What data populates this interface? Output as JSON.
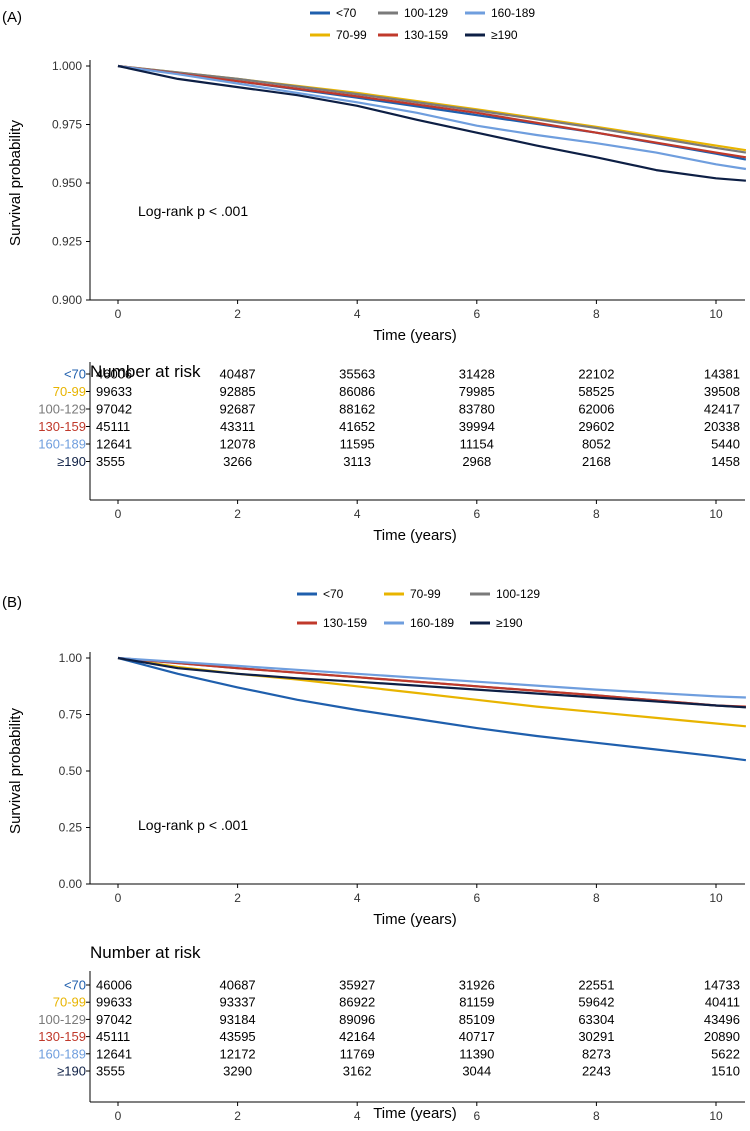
{
  "chart_data": [
    {
      "type": "line",
      "panel_label": "(A)",
      "ylabel": "Survival probability",
      "xlabel": "Time (years)",
      "xlim": [
        0,
        10.5
      ],
      "ylim": [
        0.9,
        1.0
      ],
      "x_ticks": [
        0,
        2,
        4,
        6,
        8,
        10
      ],
      "y_ticks": [
        0.9,
        0.925,
        0.95,
        0.975,
        1.0
      ],
      "y_tick_labels": [
        "0.900",
        "0.925",
        "0.950",
        "0.975",
        "1.000"
      ],
      "annotation": "Log-rank p < .001",
      "legend": [
        [
          "<70",
          "100-129",
          "160-189"
        ],
        [
          "70-99",
          "130-159",
          "≥190"
        ]
      ],
      "series": [
        {
          "name": "<70",
          "color": "#1f5fad",
          "x": [
            0,
            2,
            4,
            6,
            8,
            10,
            10.5
          ],
          "values": [
            1.0,
            0.9935,
            0.9865,
            0.979,
            0.9715,
            0.9625,
            0.96
          ]
        },
        {
          "name": "70-99",
          "color": "#e8b400",
          "x": [
            0,
            2,
            4,
            6,
            8,
            10,
            10.5
          ],
          "values": [
            1.0,
            0.9945,
            0.9885,
            0.9815,
            0.974,
            0.966,
            0.964
          ]
        },
        {
          "name": "100-129",
          "color": "#7a7a7a",
          "x": [
            0,
            2,
            4,
            6,
            8,
            10,
            10.5
          ],
          "values": [
            1.0,
            0.9945,
            0.988,
            0.981,
            0.9735,
            0.965,
            0.963
          ]
        },
        {
          "name": "130-159",
          "color": "#c0392b",
          "x": [
            0,
            2,
            4,
            6,
            8,
            10,
            10.5
          ],
          "values": [
            1.0,
            0.9935,
            0.987,
            0.98,
            0.9715,
            0.963,
            0.961
          ]
        },
        {
          "name": "160-189",
          "color": "#6f9ede",
          "x": [
            0,
            1,
            2,
            3,
            4,
            5,
            6,
            7,
            8,
            9,
            10,
            10.5
          ],
          "values": [
            1.0,
            0.9965,
            0.9925,
            0.9885,
            0.9845,
            0.98,
            0.9745,
            0.9705,
            0.967,
            0.963,
            0.958,
            0.956
          ]
        },
        {
          "name": "≥190",
          "color": "#0d1f45",
          "x": [
            0,
            1,
            2,
            3,
            4,
            5,
            6,
            7,
            8,
            9,
            10,
            10.5
          ],
          "values": [
            1.0,
            0.9945,
            0.991,
            0.9875,
            0.983,
            0.977,
            0.9715,
            0.966,
            0.961,
            0.9555,
            0.952,
            0.951
          ]
        }
      ]
    },
    {
      "type": "line",
      "panel_label": "(B)",
      "ylabel": "Survival probability",
      "xlabel": "Time (years)",
      "xlim": [
        0,
        10.5
      ],
      "ylim": [
        0.0,
        1.0
      ],
      "x_ticks": [
        0,
        2,
        4,
        6,
        8,
        10
      ],
      "y_ticks": [
        0.0,
        0.25,
        0.5,
        0.75,
        1.0
      ],
      "y_tick_labels": [
        "0.00",
        "0.25",
        "0.50",
        "0.75",
        "1.00"
      ],
      "annotation": "Log-rank p < .001",
      "legend": [
        [
          "<70",
          "70-99",
          "100-129"
        ],
        [
          "130-159",
          "160-189",
          "≥190"
        ]
      ],
      "series": [
        {
          "name": "<70",
          "color": "#1f5fad",
          "x": [
            0,
            1,
            2,
            3,
            4,
            5,
            6,
            7,
            8,
            9,
            10,
            10.5
          ],
          "values": [
            1.0,
            0.93,
            0.87,
            0.815,
            0.77,
            0.73,
            0.69,
            0.655,
            0.625,
            0.595,
            0.565,
            0.548
          ]
        },
        {
          "name": "70-99",
          "color": "#e8b400",
          "x": [
            0,
            1,
            2,
            3,
            4,
            5,
            6,
            7,
            8,
            9,
            10,
            10.5
          ],
          "values": [
            1.0,
            0.96,
            0.93,
            0.905,
            0.875,
            0.845,
            0.815,
            0.785,
            0.76,
            0.735,
            0.71,
            0.698
          ]
        },
        {
          "name": "100-129",
          "color": "#7a7a7a",
          "x": [
            0,
            2,
            4,
            6,
            8,
            10,
            10.5
          ],
          "values": [
            1.0,
            0.955,
            0.915,
            0.875,
            0.835,
            0.79,
            0.782
          ]
        },
        {
          "name": "130-159",
          "color": "#c0392b",
          "x": [
            0,
            2,
            4,
            6,
            8,
            10,
            10.5
          ],
          "values": [
            1.0,
            0.955,
            0.915,
            0.875,
            0.835,
            0.79,
            0.785
          ]
        },
        {
          "name": "160-189",
          "color": "#6f9ede",
          "x": [
            0,
            2,
            4,
            6,
            8,
            10,
            10.5
          ],
          "values": [
            1.0,
            0.965,
            0.93,
            0.895,
            0.86,
            0.83,
            0.825
          ]
        },
        {
          "name": "≥190",
          "color": "#0d1f45",
          "x": [
            0,
            1,
            2,
            3,
            4,
            6,
            8,
            10,
            10.5
          ],
          "values": [
            1.0,
            0.955,
            0.93,
            0.91,
            0.895,
            0.86,
            0.825,
            0.79,
            0.782
          ]
        }
      ]
    }
  ],
  "risk_tables": [
    {
      "title": "Number at risk",
      "xlabel": "Time (years)",
      "x_ticks": [
        0,
        2,
        4,
        6,
        8,
        10
      ],
      "rows": [
        {
          "label": "<70",
          "color": "#1f5fad",
          "values": [
            "46006",
            "40487",
            "35563",
            "31428",
            "22102",
            "14381"
          ]
        },
        {
          "label": "70-99",
          "color": "#e8b400",
          "values": [
            "99633",
            "92885",
            "86086",
            "79985",
            "58525",
            "39508"
          ]
        },
        {
          "label": "100-129",
          "color": "#7a7a7a",
          "values": [
            "97042",
            "92687",
            "88162",
            "83780",
            "62006",
            "42417"
          ]
        },
        {
          "label": "130-159",
          "color": "#c0392b",
          "values": [
            "45111",
            "43311",
            "41652",
            "39994",
            "29602",
            "20338"
          ]
        },
        {
          "label": "160-189",
          "color": "#6f9ede",
          "values": [
            "12641",
            "12078",
            "11595",
            "11154",
            "8052",
            "5440"
          ]
        },
        {
          "label": "≥190",
          "color": "#0d1f45",
          "values": [
            "3555",
            "3266",
            "3113",
            "2968",
            "2168",
            "1458"
          ]
        }
      ]
    },
    {
      "title": "Number at risk",
      "xlabel": "Time (years)",
      "x_ticks": [
        0,
        2,
        4,
        6,
        8,
        10
      ],
      "rows": [
        {
          "label": "<70",
          "color": "#1f5fad",
          "values": [
            "46006",
            "40687",
            "35927",
            "31926",
            "22551",
            "14733"
          ]
        },
        {
          "label": "70-99",
          "color": "#e8b400",
          "values": [
            "99633",
            "93337",
            "86922",
            "81159",
            "59642",
            "40411"
          ]
        },
        {
          "label": "100-129",
          "color": "#7a7a7a",
          "values": [
            "97042",
            "93184",
            "89096",
            "85109",
            "63304",
            "43496"
          ]
        },
        {
          "label": "130-159",
          "color": "#c0392b",
          "values": [
            "45111",
            "43595",
            "42164",
            "40717",
            "30291",
            "20890"
          ]
        },
        {
          "label": "160-189",
          "color": "#6f9ede",
          "values": [
            "12641",
            "12172",
            "11769",
            "11390",
            "8273",
            "5622"
          ]
        },
        {
          "label": "≥190",
          "color": "#0d1f45",
          "values": [
            "3555",
            "3290",
            "3162",
            "3044",
            "2243",
            "1510"
          ]
        }
      ]
    }
  ]
}
